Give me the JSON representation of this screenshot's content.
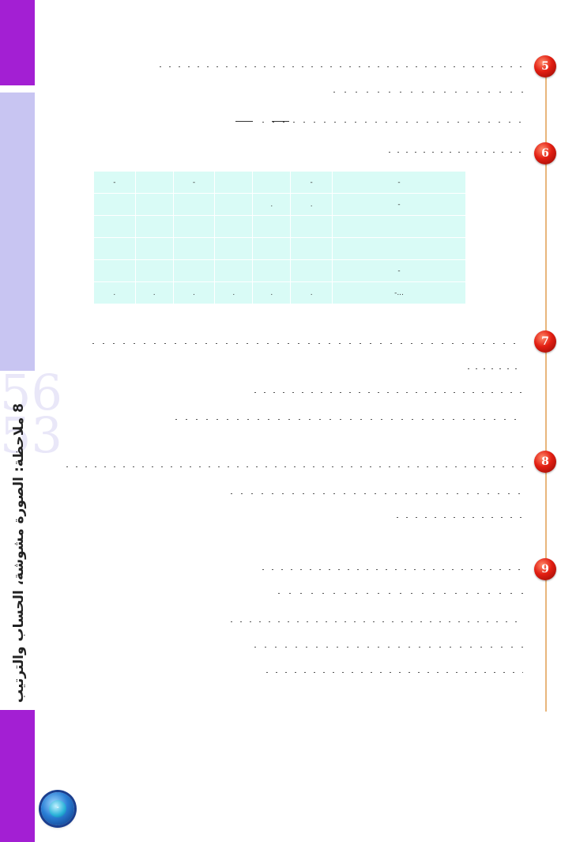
{
  "sidebar": {
    "vertical_title": "8 ملاحظة: الصورة مشوشة، الحساب والترتيب",
    "deco_digits": [
      "56",
      "53"
    ],
    "orb_label": "-"
  },
  "questions": [
    {
      "number": "5"
    },
    {
      "number": "6"
    },
    {
      "number": "7"
    },
    {
      "number": "8"
    },
    {
      "number": "9"
    }
  ],
  "table": {
    "rows": [
      {
        "label": "-",
        "cells": [
          "-",
          "",
          "-",
          "",
          "",
          "-"
        ]
      },
      {
        "label": "-",
        "cells": [
          "",
          "",
          "",
          "",
          ".",
          "."
        ]
      },
      {
        "label": "",
        "cells": [
          "",
          "",
          "",
          "",
          "",
          ""
        ]
      },
      {
        "label": "",
        "cells": [
          "",
          "",
          "",
          "",
          "",
          ""
        ]
      },
      {
        "label": "-",
        "cells": [
          "",
          "",
          "",
          "",
          "",
          ""
        ]
      },
      {
        "label": "-...",
        "cells": [
          ".",
          ".",
          ".",
          ".",
          ".",
          "."
        ]
      }
    ]
  },
  "colors": {
    "accent_purple": "#a31fd3",
    "lavender": "#c8c5f2",
    "marker_red": "#e21e12",
    "timeline": "#e8b67c",
    "table_bg": "#d9fbf6"
  }
}
